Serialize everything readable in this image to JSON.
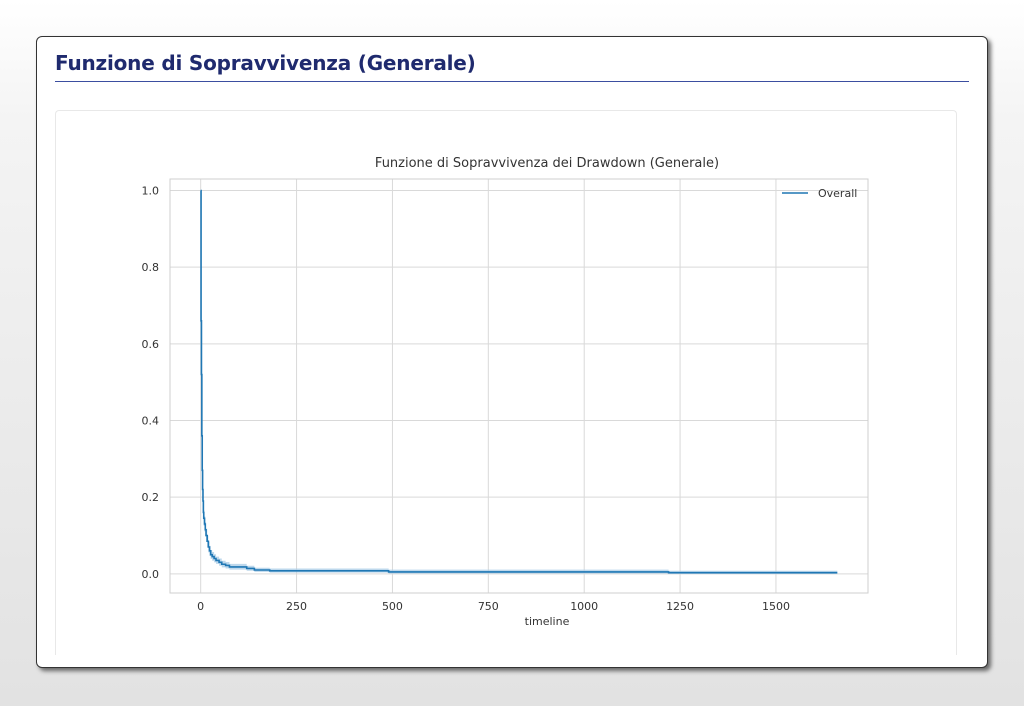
{
  "page": {
    "heading": "Funzione di Sopravvivenza (Generale)"
  },
  "colors": {
    "heading": "#1f2a6e",
    "rule": "#3b4ea0",
    "line": "#1f77b4",
    "band": "#a8cbe6",
    "grid": "#d9d9d9"
  },
  "chart_data": {
    "type": "line",
    "title": "Funzione di Sopravvivenza dei Drawdown (Generale)",
    "xlabel": "timeline",
    "ylabel": "",
    "xlim": [
      -80,
      1740
    ],
    "ylim": [
      -0.05,
      1.03
    ],
    "x_ticks": [
      0,
      250,
      500,
      750,
      1000,
      1250,
      1500
    ],
    "y_ticks": [
      0.0,
      0.2,
      0.4,
      0.6,
      0.8,
      1.0
    ],
    "x_tick_labels": [
      "0",
      "250",
      "500",
      "750",
      "1000",
      "1250",
      "1500"
    ],
    "y_tick_labels": [
      "0.0",
      "0.2",
      "0.4",
      "0.6",
      "0.8",
      "1.0"
    ],
    "grid": true,
    "legend": {
      "position": "top-right",
      "entries": [
        "Overall"
      ]
    },
    "series": [
      {
        "name": "Overall",
        "step": true,
        "x": [
          0,
          1,
          2,
          3,
          4,
          5,
          6,
          7,
          8,
          10,
          12,
          14,
          17,
          20,
          23,
          26,
          30,
          35,
          40,
          48,
          55,
          65,
          75,
          90,
          100,
          120,
          140,
          180,
          250,
          490,
          1000,
          1220,
          1660
        ],
        "y": [
          1.0,
          0.66,
          0.52,
          0.36,
          0.27,
          0.22,
          0.19,
          0.16,
          0.145,
          0.13,
          0.115,
          0.1,
          0.085,
          0.07,
          0.06,
          0.05,
          0.045,
          0.04,
          0.035,
          0.03,
          0.025,
          0.022,
          0.018,
          0.018,
          0.018,
          0.014,
          0.01,
          0.008,
          0.008,
          0.005,
          0.005,
          0.003,
          0.003
        ],
        "lower": [
          1.0,
          0.62,
          0.48,
          0.32,
          0.24,
          0.19,
          0.165,
          0.14,
          0.125,
          0.11,
          0.097,
          0.083,
          0.069,
          0.056,
          0.047,
          0.039,
          0.034,
          0.03,
          0.026,
          0.021,
          0.017,
          0.014,
          0.011,
          0.011,
          0.011,
          0.008,
          0.005,
          0.003,
          0.003,
          0.001,
          0.001,
          0.0,
          0.0
        ],
        "upper": [
          1.0,
          0.7,
          0.56,
          0.4,
          0.3,
          0.25,
          0.215,
          0.18,
          0.165,
          0.15,
          0.135,
          0.118,
          0.1,
          0.084,
          0.073,
          0.062,
          0.057,
          0.051,
          0.045,
          0.04,
          0.034,
          0.031,
          0.026,
          0.026,
          0.026,
          0.021,
          0.016,
          0.014,
          0.014,
          0.011,
          0.011,
          0.008,
          0.008
        ]
      }
    ]
  }
}
